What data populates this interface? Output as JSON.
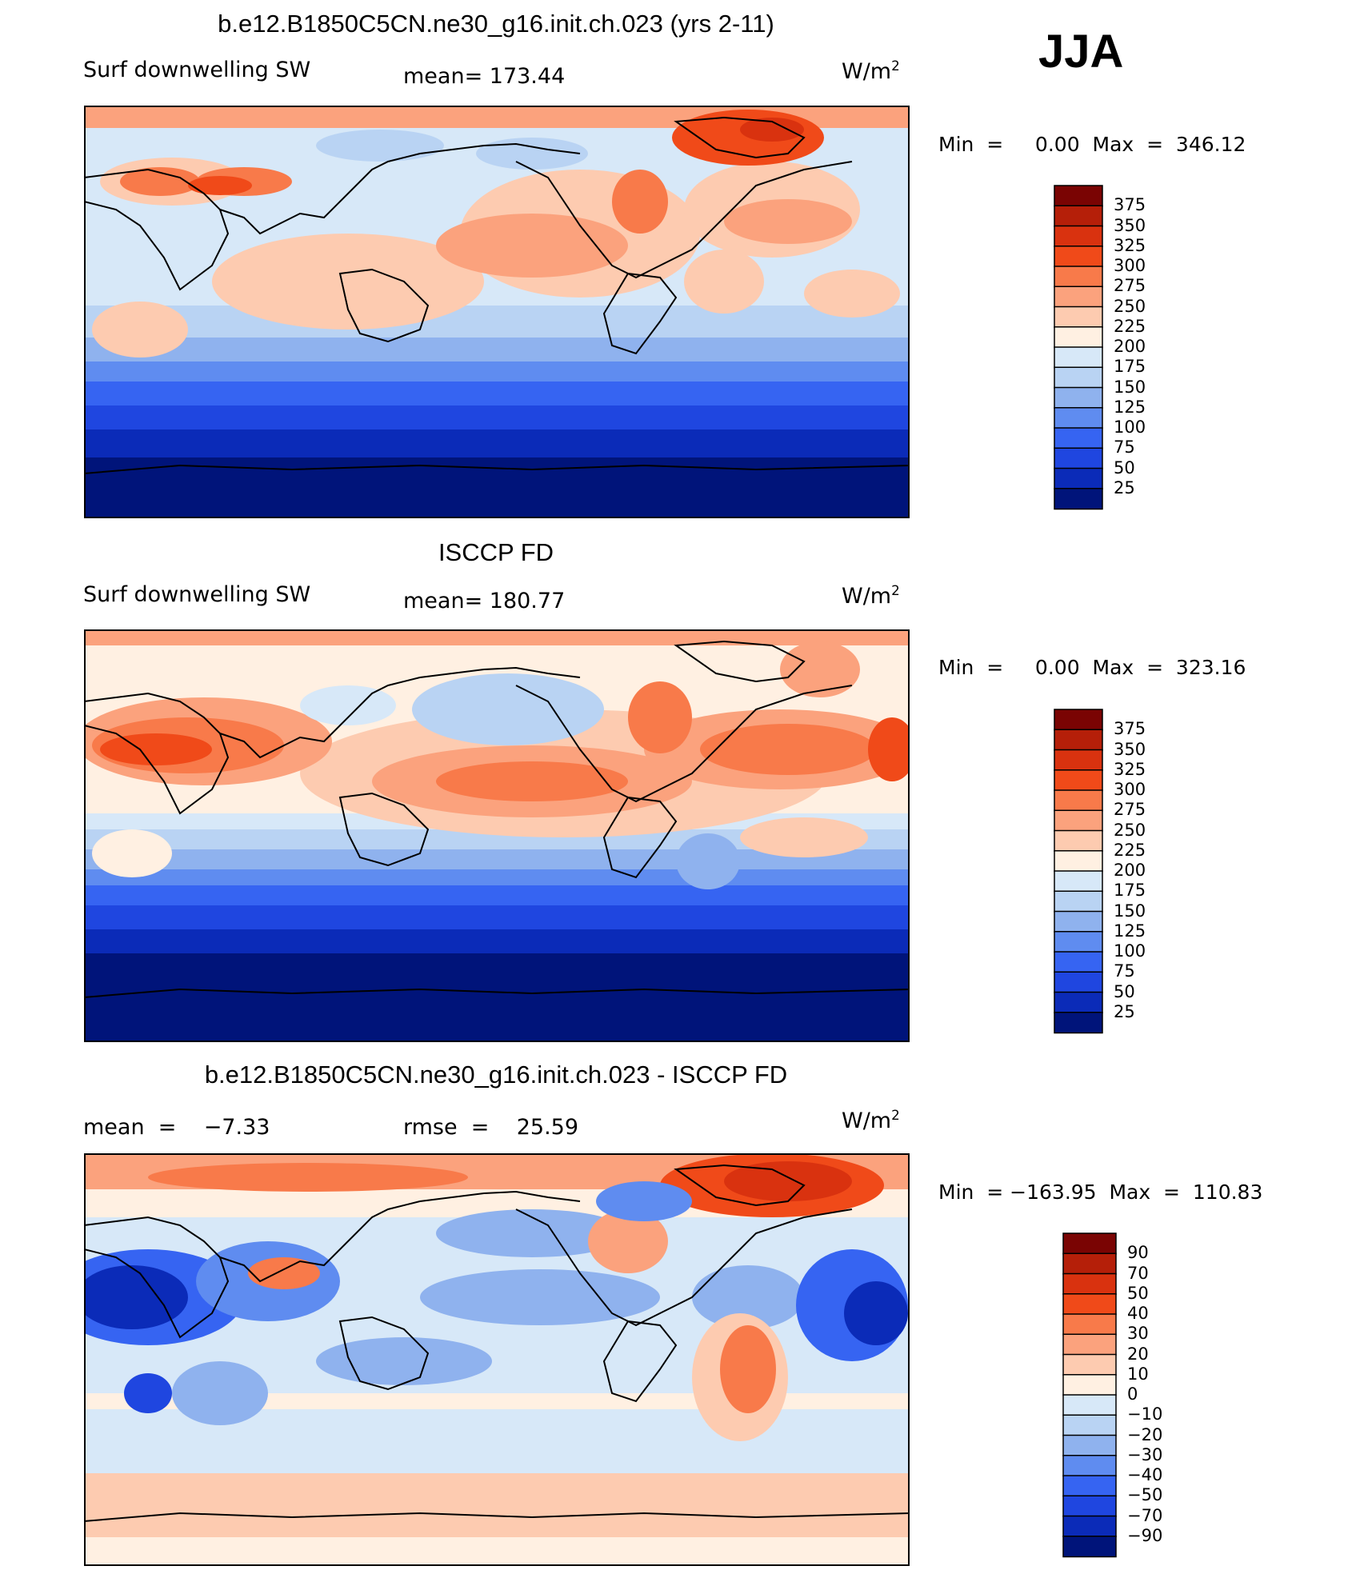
{
  "season": "JJA",
  "chart_data": [
    {
      "type": "heatmap",
      "title": "b.e12.B1850C5CN.ne30_g16.init.ch.023 (yrs 2-11)",
      "variable": "Surf downwelling SW",
      "stat_text": "mean=  173.44",
      "mean": 173.44,
      "units": "W/m",
      "units_sup": "2",
      "min_text": "Min  =     0.00  Max  =  346.12",
      "min": 0.0,
      "max": 346.12,
      "colorbar_labels": [
        "375",
        "350",
        "325",
        "300",
        "275",
        "250",
        "225",
        "200",
        "175",
        "150",
        "125",
        "100",
        "75",
        "50",
        "25"
      ],
      "colorbar_colors": [
        "#7a0403",
        "#b51f09",
        "#d9320f",
        "#f04a19",
        "#f87a4a",
        "#fba27d",
        "#fdcbb0",
        "#fff0e2",
        "#d7e8f8",
        "#b9d3f3",
        "#8fb2ee",
        "#5f8cf0",
        "#3664f2",
        "#1f46e0",
        "#0b2bb8",
        "#00147a"
      ]
    },
    {
      "type": "heatmap",
      "title": "ISCCP FD",
      "variable": "Surf downwelling SW",
      "stat_text": "mean=  180.77",
      "mean": 180.77,
      "units": "W/m",
      "units_sup": "2",
      "min_text": "Min  =     0.00  Max  =  323.16",
      "min": 0.0,
      "max": 323.16,
      "colorbar_labels": [
        "375",
        "350",
        "325",
        "300",
        "275",
        "250",
        "225",
        "200",
        "175",
        "150",
        "125",
        "100",
        "75",
        "50",
        "25"
      ],
      "colorbar_colors": [
        "#7a0403",
        "#b51f09",
        "#d9320f",
        "#f04a19",
        "#f87a4a",
        "#fba27d",
        "#fdcbb0",
        "#fff0e2",
        "#d7e8f8",
        "#b9d3f3",
        "#8fb2ee",
        "#5f8cf0",
        "#3664f2",
        "#1f46e0",
        "#0b2bb8",
        "#00147a"
      ]
    },
    {
      "type": "heatmap",
      "title": "b.e12.B1850C5CN.ne30_g16.init.ch.023 - ISCCP FD",
      "stat_text": "mean  =    −7.33",
      "stat2_text": "rmse  =    25.59",
      "mean": -7.33,
      "rmse": 25.59,
      "units": "W/m",
      "units_sup": "2",
      "min_text": "Min  = −163.95  Max  =  110.83",
      "min": -163.95,
      "max": 110.83,
      "colorbar_labels": [
        "90",
        "70",
        "50",
        "40",
        "30",
        "20",
        "10",
        "0",
        "−10",
        "−20",
        "−30",
        "−40",
        "−50",
        "−70",
        "−90"
      ],
      "colorbar_colors": [
        "#7a0403",
        "#b51f09",
        "#d9320f",
        "#f04a19",
        "#f87a4a",
        "#fba27d",
        "#fdcbb0",
        "#fff0e2",
        "#d7e8f8",
        "#b9d3f3",
        "#8fb2ee",
        "#5f8cf0",
        "#3664f2",
        "#1f46e0",
        "#0b2bb8",
        "#00147a"
      ]
    }
  ]
}
